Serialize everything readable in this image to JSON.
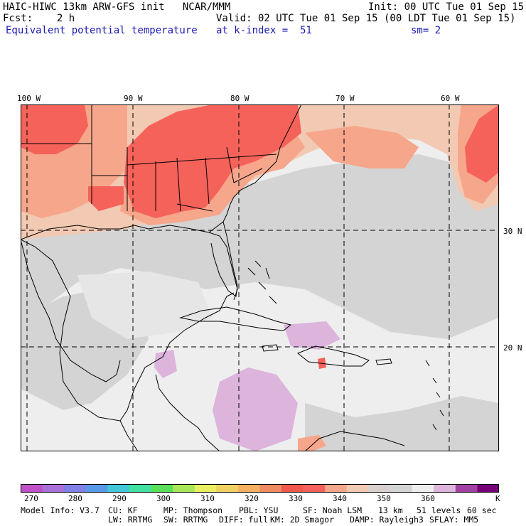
{
  "header": {
    "model_title": "HAIC-HIWC 13km ARW-GFS init   NCAR/MMM",
    "init": "Init: 00 UTC Tue 01 Sep 15",
    "fcst": "Fcst:    2 h",
    "valid": "Valid: 02 UTC Tue 01 Sep 15 (00 LDT Tue 01 Sep 15)",
    "field": "Equivalent potential temperature",
    "level": "at k-index =  51",
    "smooth": "sm= 2"
  },
  "map": {
    "longitude_labels": [
      "100 W",
      "90 W",
      "80 W",
      "70 W",
      "60 W"
    ],
    "latitude_labels": [
      "30 N",
      "20 N"
    ],
    "colors": {
      "ocean_gray": "#d4d4d4",
      "ocean_light": "#eeeeee",
      "peach": "#f2c9b2",
      "salmon": "#f6a68b",
      "red": "#f4625a",
      "lavender": "#dcb4dc",
      "coast": "#000000"
    }
  },
  "colorbar": {
    "labels": [
      "270",
      "280",
      "290",
      "300",
      "310",
      "320",
      "330",
      "340",
      "350",
      "360",
      "K"
    ],
    "colors": [
      "#c050c8",
      "#a870d8",
      "#8080e8",
      "#5898e8",
      "#40c8d8",
      "#40e0a0",
      "#58e058",
      "#a8e858",
      "#e8f060",
      "#f0d060",
      "#f4b060",
      "#f08a60",
      "#f0584c",
      "#f4625a",
      "#f6a68b",
      "#f2c9b2",
      "#d8d0cc",
      "#d4d4d4",
      "#eeeeee",
      "#dcb4dc",
      "#a040a0",
      "#780078"
    ]
  },
  "footer": {
    "model_info": "Model Info: V3.7",
    "cu": "CU: KF",
    "mp": "MP: Thompson",
    "pbl": "PBL: YSU",
    "sf": "SF: Noah LSM",
    "res": "13 km",
    "levels": "51 levels",
    "step": "60 sec",
    "lw": "LW: RRTMG",
    "sw": "SW: RRTMG",
    "diff": "DIFF: full",
    "km": "KM: 2D Smagor",
    "damp": "DAMP: Rayleigh3",
    "sflay": "SFLAY: MM5"
  }
}
